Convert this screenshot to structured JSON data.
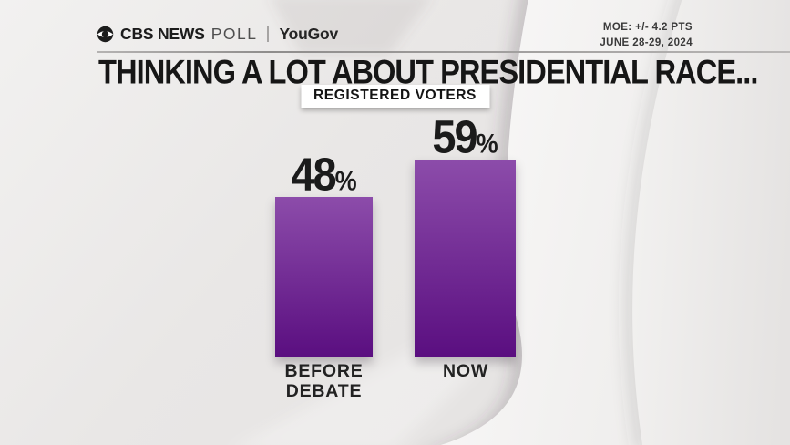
{
  "header": {
    "cbs_label": "CBS NEWS",
    "poll_label": "POLL",
    "partner_label": "YouGov",
    "moe_line1": "MOE: +/- 4.2 PTS",
    "moe_line2": "JUNE 28-29, 2024"
  },
  "title": "THINKING A LOT ABOUT PRESIDENTIAL RACE...",
  "badge": "REGISTERED VOTERS",
  "chart_data": {
    "type": "bar",
    "categories": [
      "BEFORE DEBATE",
      "NOW"
    ],
    "values": [
      48,
      59
    ],
    "unit": "%",
    "value_labels": [
      "48%",
      "59%"
    ],
    "title": "THINKING A LOT ABOUT PRESIDENTIAL RACE...",
    "subtitle": "REGISTERED VOTERS",
    "xlabel": "",
    "ylabel": "",
    "ylim": [
      0,
      100
    ],
    "grid": false,
    "legend": false,
    "bar_gradient_top": "#8c4caa",
    "bar_gradient_bottom": "#5a0e80",
    "value_label_color": "#1b1b1b"
  },
  "colors": {
    "background": "#e7e5e4",
    "accent_purple_top": "#8c4caa",
    "accent_purple_bottom": "#5a0e80",
    "text_dark": "#1b1b1b"
  }
}
